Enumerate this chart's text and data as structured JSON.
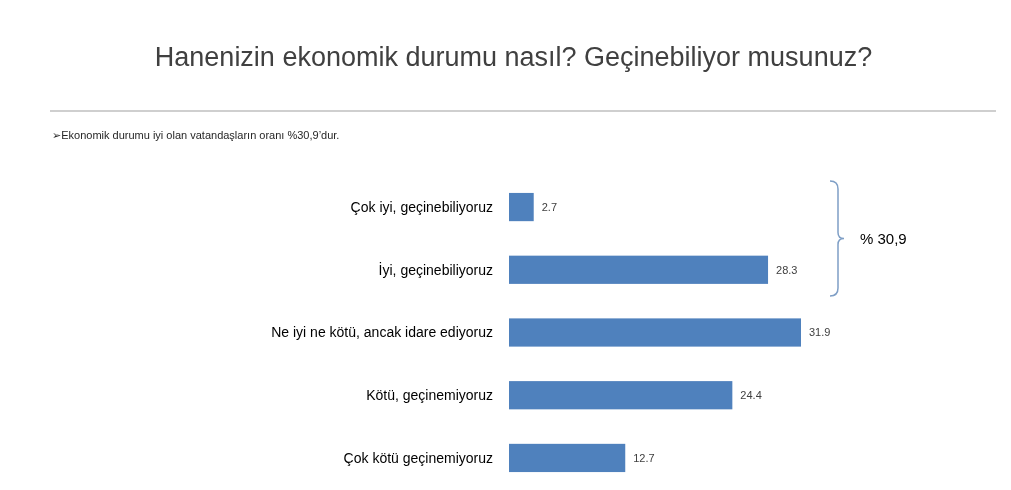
{
  "chart_data": {
    "type": "bar",
    "orientation": "horizontal",
    "title": "Hanenizin ekonomik durumu nasıl? Geçinebiliyor musunuz?",
    "subtitle": "➢Ekonomik durumu iyi olan vatandaşların oranı %30,9’dur.",
    "categories": [
      "Çok iyi, geçinebiliyoruz",
      "İyi, geçinebiliyoruz",
      "Ne iyi ne kötü, ancak idare ediyoruz",
      "Kötü, geçinemiyoruz",
      "Çok kötü geçinemiyoruz"
    ],
    "values": [
      2.7,
      28.3,
      31.9,
      24.4,
      12.7
    ],
    "color": "#4f81bd",
    "data_labels": true,
    "annotations": [
      "% 30,9"
    ]
  }
}
